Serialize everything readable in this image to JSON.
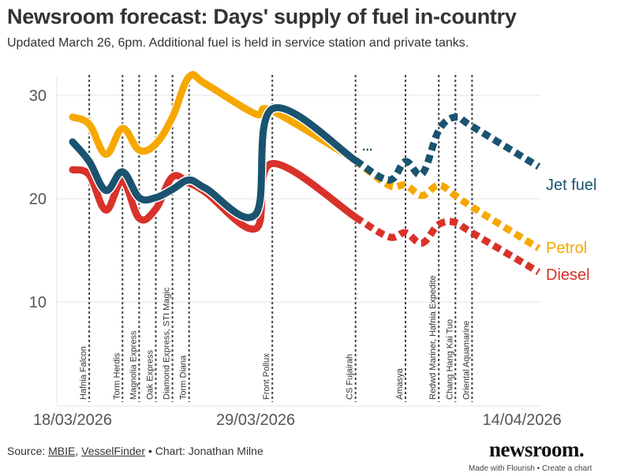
{
  "header": {
    "title": "Newsroom forecast: Days' supply of fuel in-country",
    "subtitle": "Updated March 26, 6pm. Additional fuel is held in service station and private tanks."
  },
  "footer": {
    "source_prefix": "Source: ",
    "source_link_1": "MBIE",
    "source_sep": ", ",
    "source_link_2": "VesselFinder",
    "credit": " • Chart: Jonathan Milne",
    "brand": "newsroom.",
    "made_with": "Made with Flourish • Create a chart"
  },
  "chart_data": {
    "type": "line",
    "title": "Newsroom forecast: Days' supply of fuel in-country",
    "xlabel": "",
    "ylabel": "",
    "x_unit": "days since 18/03/2026",
    "xlim": [
      0,
      28
    ],
    "ylim": [
      6.5,
      32.5
    ],
    "yticks": [
      10,
      20,
      30
    ],
    "xtick_labels": [
      {
        "day": 0,
        "label": "18/03/2026"
      },
      {
        "day": 11,
        "label": "29/03/2026"
      },
      {
        "day": 27,
        "label": "14/04/2026"
      }
    ],
    "grid": true,
    "forecast_starts_day": 17,
    "x": [
      0,
      1,
      2,
      3,
      4,
      5,
      6,
      7,
      8,
      11,
      12,
      17,
      19,
      20,
      21,
      22,
      23,
      24,
      28
    ],
    "series": [
      {
        "name": "Jet fuel",
        "color": "#1a5370",
        "values": [
          25.5,
          23.6,
          20.8,
          22.6,
          20.1,
          20.1,
          20.9,
          21.8,
          21.0,
          18.5,
          28.7,
          23.7,
          21.8,
          23.6,
          22.4,
          26.6,
          27.9,
          27.0,
          23.1
        ]
      },
      {
        "name": "Petrol",
        "color": "#f6a800",
        "values": [
          27.9,
          27.2,
          24.3,
          26.8,
          24.7,
          25.3,
          27.9,
          31.8,
          31.1,
          28.2,
          28.5,
          23.7,
          21.3,
          21.3,
          20.3,
          21.3,
          20.3,
          19.2,
          15.2
        ]
      },
      {
        "name": "Diesel",
        "color": "#d9322a",
        "values": [
          22.8,
          22.3,
          18.9,
          21.7,
          18.1,
          19.0,
          22.1,
          21.5,
          20.6,
          17.1,
          23.4,
          18.2,
          16.3,
          16.7,
          15.7,
          17.5,
          17.7,
          16.7,
          12.9
        ]
      }
    ],
    "annotations": [
      {
        "day": 1,
        "label": "Hafnia Falcon"
      },
      {
        "day": 3,
        "label": "Torm Herdis"
      },
      {
        "day": 4,
        "label": "Magnolia Express"
      },
      {
        "day": 5,
        "label": "Oak Express"
      },
      {
        "day": 6,
        "label": "Diamond Express, STI Magic"
      },
      {
        "day": 7,
        "label": "Torm Diana"
      },
      {
        "day": 12,
        "label": "Front Pollux"
      },
      {
        "day": 17,
        "label": "CS Fujairah"
      },
      {
        "day": 20,
        "label": "Amasya"
      },
      {
        "day": 22,
        "label": "Redwd Mariner, Hafnia Expedite"
      },
      {
        "day": 23,
        "label": "Chang Hang Kai Tuo"
      },
      {
        "day": 24,
        "label": "Oriental Aquamarine"
      }
    ],
    "legend": "inline-right",
    "ellipsis_label": "..."
  }
}
